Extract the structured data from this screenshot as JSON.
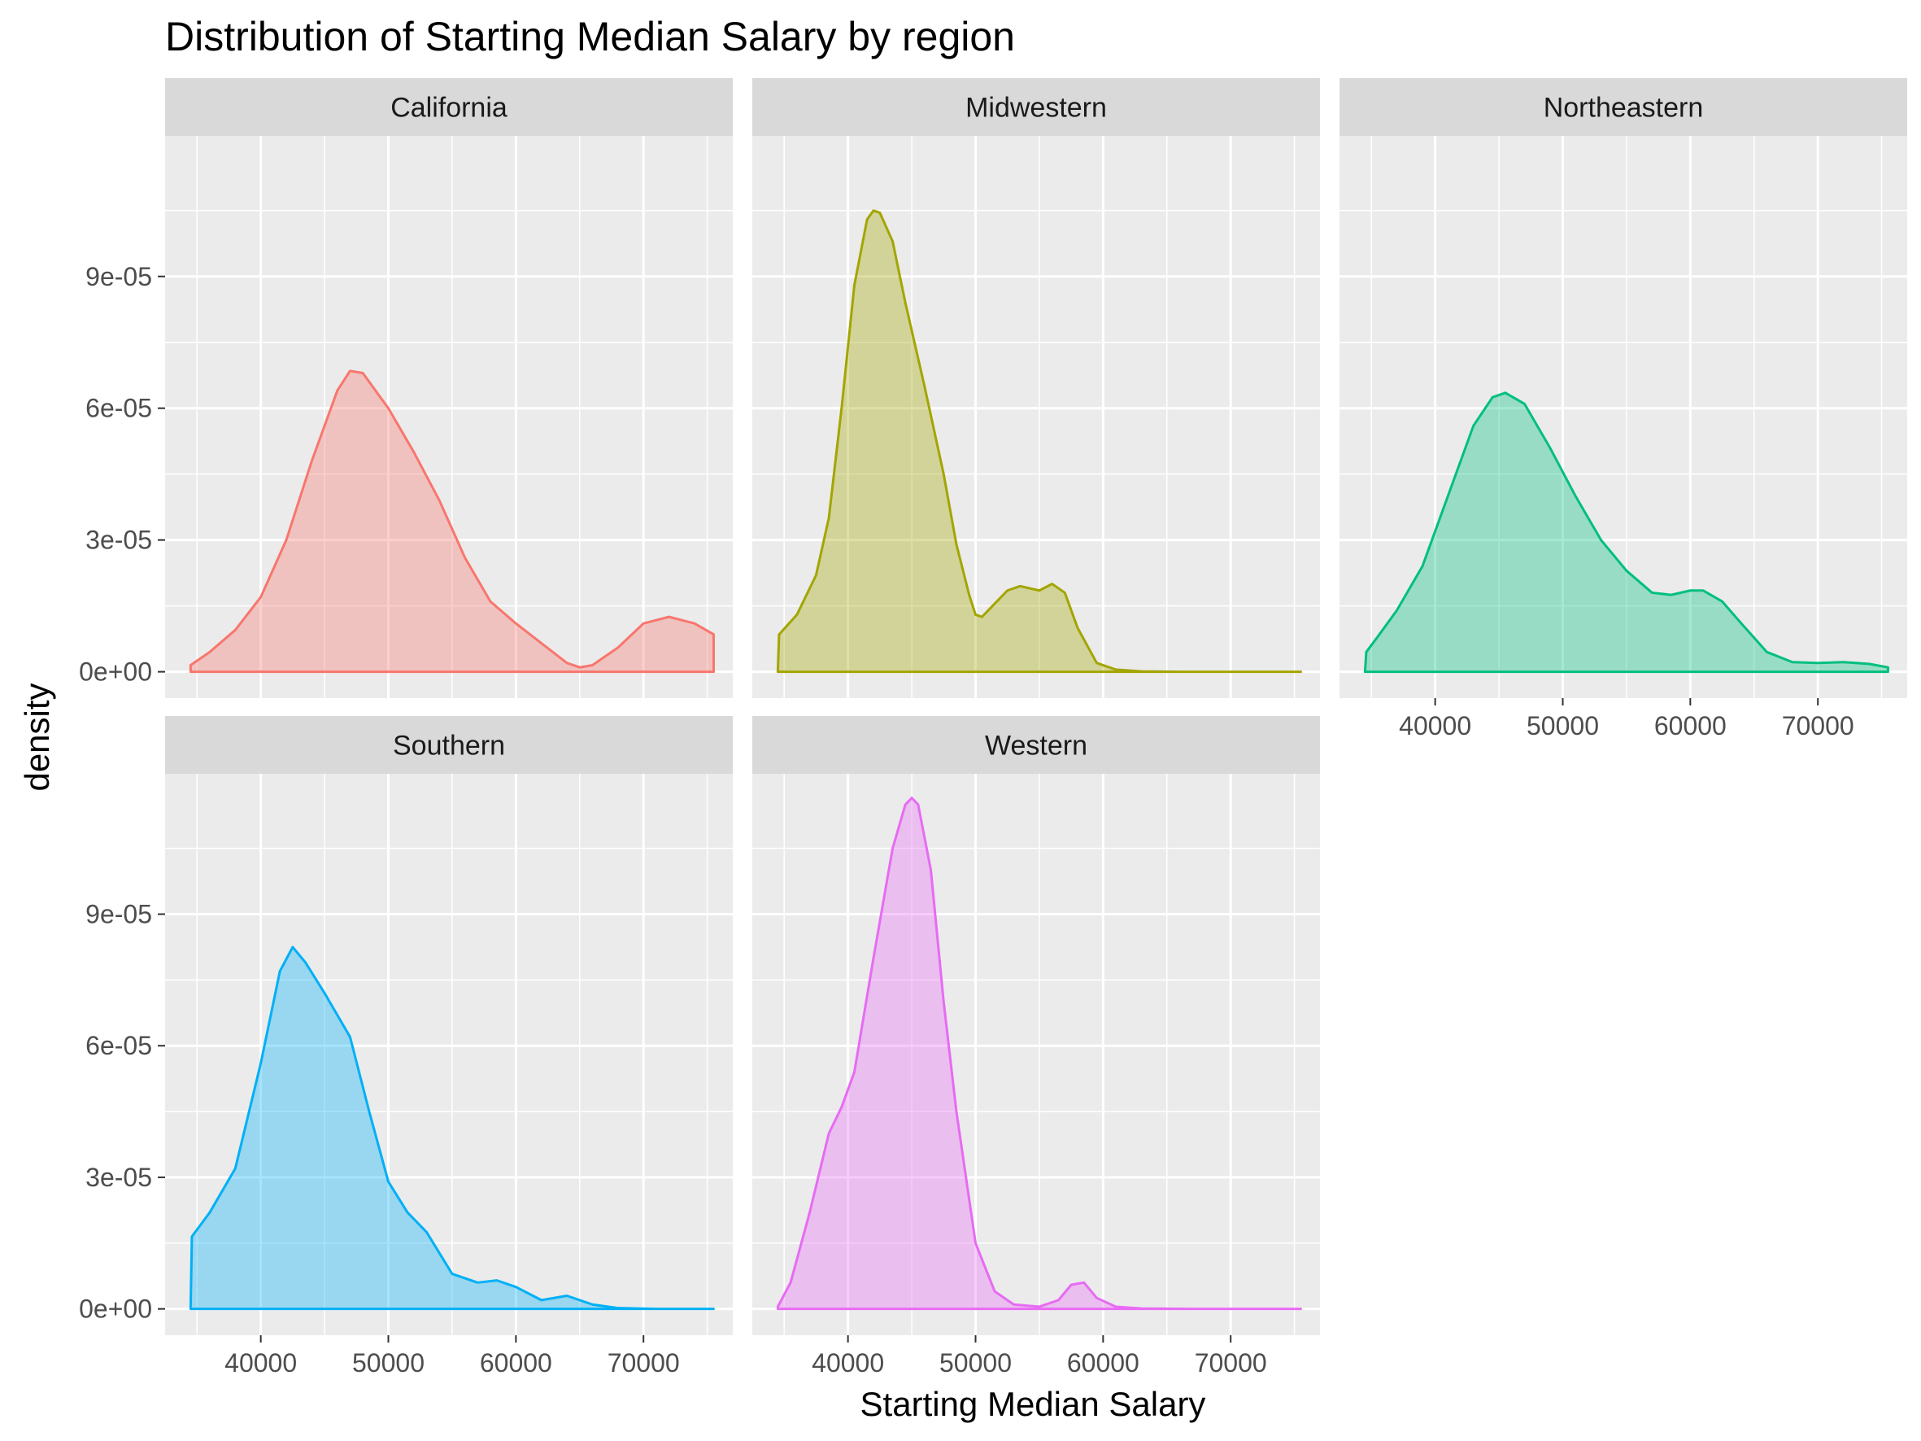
{
  "chart_data": {
    "type": "area",
    "title": "Distribution of Starting Median Salary by region",
    "xlabel": "Starting Median Salary",
    "ylabel": "density",
    "xlim": [
      32500,
      77000
    ],
    "ylim": [
      -6e-06,
      0.000122
    ],
    "x_ticks": [
      40000,
      50000,
      60000,
      70000
    ],
    "x_tick_labels": [
      "40000",
      "50000",
      "60000",
      "70000"
    ],
    "y_ticks": [
      0,
      3e-05,
      6e-05,
      9e-05
    ],
    "y_tick_labels": [
      "0e+00",
      "3e-05",
      "6e-05",
      "9e-05"
    ],
    "grid": true,
    "facets": [
      {
        "name": "California",
        "color": "#F8766D",
        "x": [
          34500,
          36000,
          38000,
          40000,
          42000,
          44000,
          46000,
          47000,
          48000,
          50000,
          52000,
          54000,
          56000,
          58000,
          60000,
          62000,
          64000,
          65000,
          66000,
          68000,
          70000,
          72000,
          74000,
          75500
        ],
        "y": [
          1.5e-06,
          4.5e-06,
          9.5e-06,
          1.7e-05,
          3e-05,
          4.8e-05,
          6.4e-05,
          6.85e-05,
          6.8e-05,
          6e-05,
          5e-05,
          3.9e-05,
          2.6e-05,
          1.6e-05,
          1.1e-05,
          6.5e-06,
          2e-06,
          1e-06,
          1.5e-06,
          5.5e-06,
          1.1e-05,
          1.25e-05,
          1.1e-05,
          8.5e-06
        ]
      },
      {
        "name": "Midwestern",
        "color": "#A3A500",
        "x": [
          34500,
          34600,
          36000,
          37500,
          38500,
          39500,
          40500,
          41500,
          42000,
          42500,
          43500,
          44500,
          46000,
          47500,
          48500,
          49500,
          50000,
          50500,
          51500,
          52500,
          53500,
          55000,
          56000,
          57000,
          58000,
          59500,
          61000,
          63000,
          66000,
          70000,
          75500
        ],
        "y": [
          0.0,
          8.5e-06,
          1.3e-05,
          2.2e-05,
          3.5e-05,
          6e-05,
          8.8e-05,
          0.000103,
          0.000105,
          0.0001045,
          9.8e-05,
          8.4e-05,
          6.5e-05,
          4.5e-05,
          2.9e-05,
          1.75e-05,
          1.3e-05,
          1.25e-05,
          1.55e-05,
          1.85e-05,
          1.95e-05,
          1.85e-05,
          2e-05,
          1.8e-05,
          1e-05,
          2e-06,
          5e-07,
          1e-07,
          0.0,
          0.0,
          0.0
        ]
      },
      {
        "name": "Northeastern",
        "color": "#00BF7D",
        "x": [
          34500,
          34600,
          35500,
          37000,
          39000,
          41000,
          43000,
          44500,
          45500,
          47000,
          49000,
          51000,
          53000,
          55000,
          57000,
          58500,
          60000,
          61000,
          62500,
          64000,
          66000,
          68000,
          70000,
          72000,
          74000,
          75500
        ],
        "y": [
          0.0,
          4.5e-06,
          8e-06,
          1.4e-05,
          2.4e-05,
          4e-05,
          5.6e-05,
          6.25e-05,
          6.35e-05,
          6.1e-05,
          5.1e-05,
          4e-05,
          3e-05,
          2.3e-05,
          1.8e-05,
          1.75e-05,
          1.85e-05,
          1.85e-05,
          1.6e-05,
          1.1e-05,
          4.5e-06,
          2.2e-06,
          2e-06,
          2.2e-06,
          1.8e-06,
          1e-06
        ]
      },
      {
        "name": "Southern",
        "color": "#00B0F6",
        "x": [
          34500,
          34600,
          36000,
          38000,
          40000,
          41500,
          42500,
          43500,
          45000,
          47000,
          48500,
          50000,
          51500,
          53000,
          55000,
          57000,
          58500,
          60000,
          62000,
          64000,
          66000,
          68000,
          71000,
          75500
        ],
        "y": [
          0.0,
          1.65e-05,
          2.2e-05,
          3.2e-05,
          5.6e-05,
          7.7e-05,
          8.25e-05,
          7.9e-05,
          7.2e-05,
          6.2e-05,
          4.5e-05,
          2.9e-05,
          2.2e-05,
          1.75e-05,
          8e-06,
          6e-06,
          6.5e-06,
          5e-06,
          2e-06,
          3e-06,
          1e-06,
          2e-07,
          0.0,
          0.0
        ]
      },
      {
        "name": "Western",
        "color": "#E76BF3",
        "x": [
          34500,
          35500,
          37000,
          38500,
          39500,
          40500,
          42000,
          43500,
          44500,
          45000,
          45500,
          46500,
          47500,
          48500,
          50000,
          51500,
          53000,
          55000,
          56500,
          57500,
          58500,
          59500,
          61000,
          63000,
          67000,
          75500
        ],
        "y": [
          5e-07,
          6e-06,
          2.2e-05,
          4e-05,
          4.6e-05,
          5.4e-05,
          8e-05,
          0.000105,
          0.000115,
          0.0001165,
          0.000115,
          0.0001,
          7e-05,
          4.5e-05,
          1.5e-05,
          4e-06,
          1e-06,
          5e-07,
          2e-06,
          5.5e-06,
          6e-06,
          2.5e-06,
          5e-07,
          1e-07,
          0.0,
          0.0
        ]
      }
    ]
  }
}
